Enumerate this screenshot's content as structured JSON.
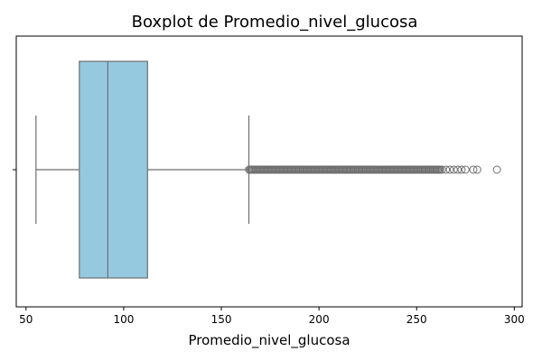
{
  "chart_data": {
    "type": "boxplot",
    "title": "Boxplot de Promedio_nivel_glucosa",
    "xlabel": "Promedio_nivel_glucosa",
    "ylabel": "",
    "xlim": [
      45,
      304
    ],
    "xticks": [
      50,
      100,
      150,
      200,
      250,
      300
    ],
    "orientation": "horizontal",
    "grid": false,
    "stats": {
      "whisker_low": 55.1,
      "q1": 77.3,
      "median": 91.9,
      "q3": 112.2,
      "whisker_high": 164.1
    },
    "outliers_dense_range": [
      164.2,
      262
    ],
    "outliers": [
      263,
      265,
      267,
      269,
      271,
      273,
      275,
      279,
      281,
      291.1
    ],
    "colors": {
      "box_fill": "#95c9e0",
      "line": "#6e6e6e",
      "outlier_edge": "#6e6e6e"
    }
  }
}
